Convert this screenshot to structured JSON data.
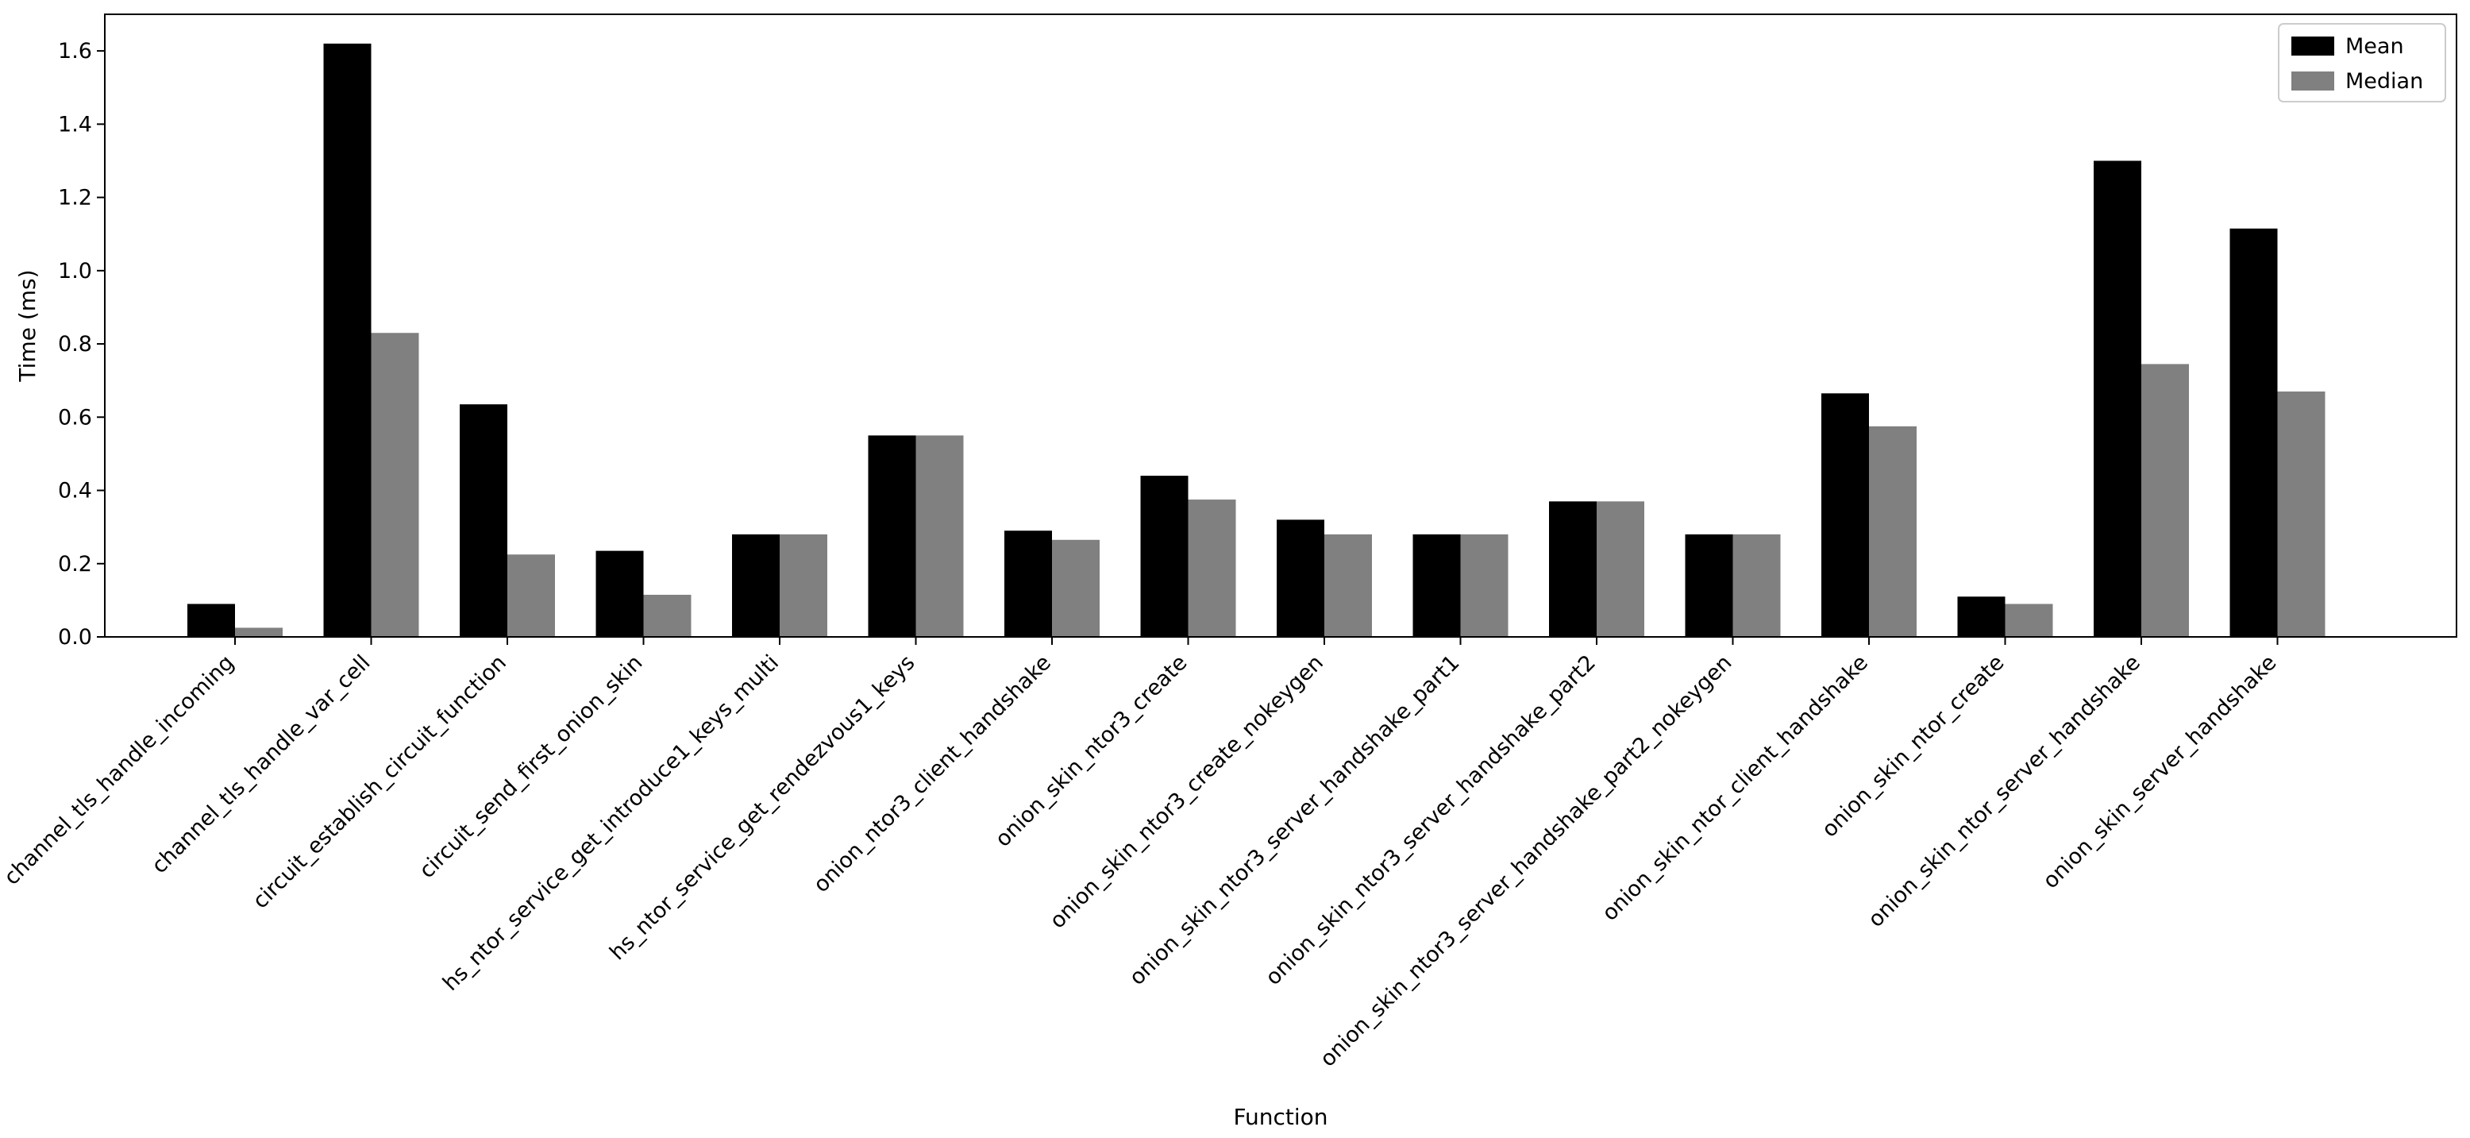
{
  "chart_data": {
    "type": "bar",
    "xlabel": "Function",
    "ylabel": "Time (ms)",
    "ylim": [
      0,
      1.7
    ],
    "yticks": [
      0.0,
      0.2,
      0.4,
      0.6,
      0.8,
      1.0,
      1.2,
      1.4,
      1.6
    ],
    "ytick_labels": [
      "0.0",
      "0.2",
      "0.4",
      "0.6",
      "0.8",
      "1.0",
      "1.2",
      "1.4",
      "1.6"
    ],
    "grid": false,
    "legend_position": "top-right",
    "categories": [
      "channel_tls_handle_incoming",
      "channel_tls_handle_var_cell",
      "circuit_establish_circuit_function",
      "circuit_send_first_onion_skin",
      "hs_ntor_service_get_introduce1_keys_multi",
      "hs_ntor_service_get_rendezvous1_keys",
      "onion_ntor3_client_handshake",
      "onion_skin_ntor3_create",
      "onion_skin_ntor3_create_nokeygen",
      "onion_skin_ntor3_server_handshake_part1",
      "onion_skin_ntor3_server_handshake_part2",
      "onion_skin_ntor3_server_handshake_part2_nokeygen",
      "onion_skin_ntor_client_handshake",
      "onion_skin_ntor_create",
      "onion_skin_ntor_server_handshake",
      "onion_skin_server_handshake"
    ],
    "series": [
      {
        "name": "Mean",
        "color": "#000000",
        "values": [
          0.09,
          1.62,
          0.635,
          0.235,
          0.28,
          0.55,
          0.29,
          0.44,
          0.32,
          0.28,
          0.37,
          0.28,
          0.665,
          0.11,
          1.3,
          1.115
        ]
      },
      {
        "name": "Median",
        "color": "#808080",
        "values": [
          0.025,
          0.83,
          0.225,
          0.115,
          0.28,
          0.55,
          0.265,
          0.375,
          0.28,
          0.28,
          0.37,
          0.28,
          0.575,
          0.09,
          0.745,
          0.67
        ]
      }
    ]
  }
}
